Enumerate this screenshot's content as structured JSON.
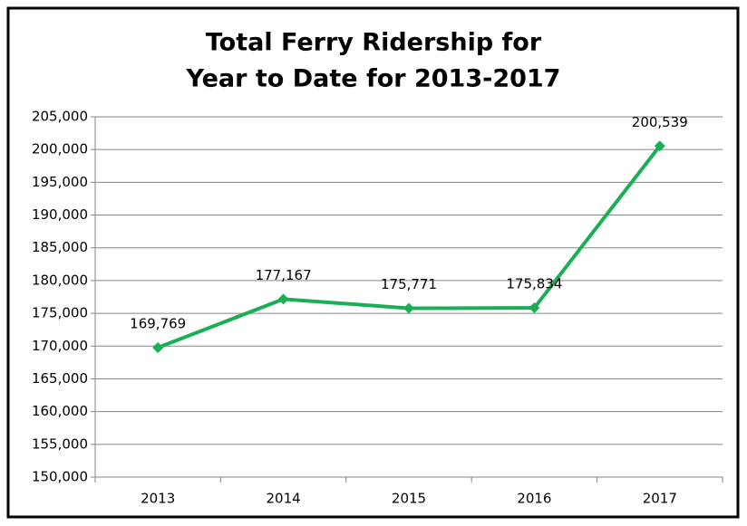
{
  "chart_data": {
    "type": "line",
    "title": [
      "Total Ferry Ridership for",
      "Year to Date for 2013-2017"
    ],
    "categories": [
      "2013",
      "2014",
      "2015",
      "2016",
      "2017"
    ],
    "values": [
      169769,
      177167,
      175771,
      175834,
      200539
    ],
    "value_labels": [
      "169,769",
      "177,167",
      "175,771",
      "175,834",
      "200,539"
    ],
    "color": "#1aaf54",
    "ylim": [
      150000,
      205000
    ],
    "yticks": [
      {
        "value": 150000,
        "label": "150,000"
      },
      {
        "value": 155000,
        "label": "155,000"
      },
      {
        "value": 160000,
        "label": "160,000"
      },
      {
        "value": 165000,
        "label": "165,000"
      },
      {
        "value": 170000,
        "label": "170,000"
      },
      {
        "value": 175000,
        "label": "175,000"
      },
      {
        "value": 180000,
        "label": "180,000"
      },
      {
        "value": 185000,
        "label": "185,000"
      },
      {
        "value": 190000,
        "label": "190,000"
      },
      {
        "value": 195000,
        "label": "195,000"
      },
      {
        "value": 200000,
        "label": "200,000"
      },
      {
        "value": 205000,
        "label": "205,000"
      }
    ],
    "grid": true
  }
}
